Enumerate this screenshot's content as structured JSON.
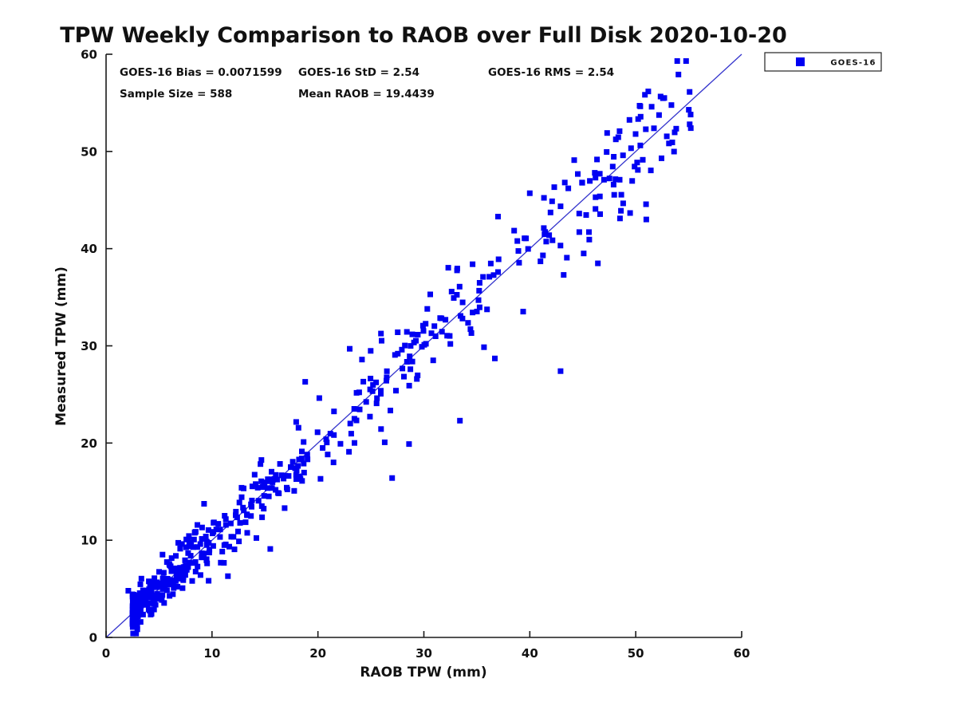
{
  "title": "TPW Weekly Comparison to RAOB over Full Disk 2020-10-20",
  "stats": {
    "bias": "GOES-16 Bias = 0.0071599",
    "std": "GOES-16 StD = 2.54",
    "rms": "GOES-16 RMS = 2.54",
    "sample_size": "Sample Size = 588",
    "mean_raob": "Mean RAOB = 19.4439"
  },
  "legend": {
    "position": "top-right-outside",
    "entries": [
      {
        "label": "GOES-16",
        "marker": "square",
        "marker_color": "#0000f2"
      }
    ]
  },
  "axes": {
    "xlabel": "RAOB TPW (mm)",
    "ylabel": "Measured TPW (mm)",
    "xlim": [
      0,
      60
    ],
    "ylim": [
      0,
      60
    ],
    "xticks": [
      0,
      10,
      20,
      30,
      40,
      50,
      60
    ],
    "yticks": [
      0,
      10,
      20,
      30,
      40,
      50,
      60
    ],
    "grid": false,
    "box": false
  },
  "chart_data": {
    "type": "scatter",
    "title": "TPW Weekly Comparison to RAOB over Full Disk 2020-10-20",
    "xlabel": "RAOB TPW (mm)",
    "ylabel": "Measured TPW (mm)",
    "xlim": [
      0,
      60
    ],
    "ylim": [
      0,
      60
    ],
    "reference_line": {
      "meaning": "1:1 identity line",
      "from": [
        0,
        0
      ],
      "to": [
        60,
        60
      ],
      "color": "#3333cc"
    },
    "series": [
      {
        "name": "GOES-16",
        "marker": "square",
        "color": "#0000f2",
        "sample_size": 588,
        "bias": 0.0071599,
        "std": 2.54,
        "rms": 2.54,
        "mean_raob": 19.4439,
        "points_explicit": [
          [
            2.1,
            4.8
          ],
          [
            2.5,
            4.2
          ],
          [
            11.5,
            6.3
          ],
          [
            15.5,
            9.1
          ],
          [
            18.8,
            26.3
          ],
          [
            23.0,
            29.7
          ],
          [
            27.0,
            16.4
          ],
          [
            28.6,
            19.9
          ],
          [
            33.4,
            22.3
          ],
          [
            36.7,
            28.7
          ],
          [
            42.9,
            27.4
          ],
          [
            34.6,
            38.4
          ],
          [
            37.0,
            43.3
          ],
          [
            40.0,
            45.7
          ],
          [
            43.2,
            37.3
          ],
          [
            43.3,
            46.8
          ],
          [
            47.3,
            51.9
          ],
          [
            48.6,
            43.9
          ],
          [
            51.0,
            43.0
          ],
          [
            48.8,
            49.6
          ],
          [
            52.7,
            55.5
          ],
          [
            51.5,
            54.6
          ],
          [
            55.2,
            52.4
          ],
          [
            50.2,
            48.1
          ]
        ],
        "points_generated": {
          "note": "remaining unlabeled cloud of samples, y = x + bias + noise",
          "count": 564,
          "seed": 20201020,
          "x_min": 2.5,
          "x_span": 53,
          "x_power": 2.3,
          "noise_base": 0.85,
          "noise_slope": 0.05,
          "y_clip": [
            0.4,
            59.3
          ]
        }
      }
    ]
  }
}
